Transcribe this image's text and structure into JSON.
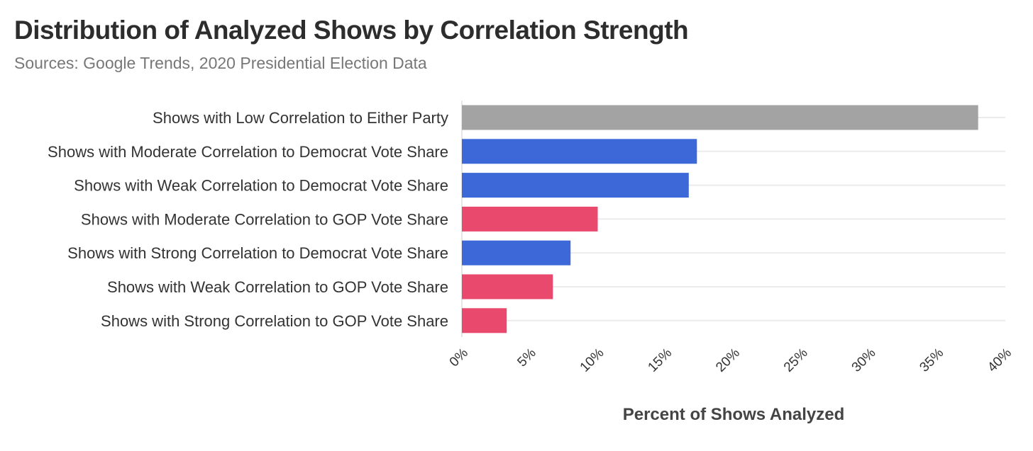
{
  "chart_data": {
    "type": "bar",
    "orientation": "horizontal",
    "title": "Distribution of Analyzed Shows by Correlation Strength",
    "subtitle": "Sources: Google Trends, 2020 Presidential Election Data",
    "xlabel": "Percent of Shows Analyzed",
    "ylabel": "",
    "xlim": [
      0,
      40
    ],
    "tick_values": [
      0,
      5,
      10,
      15,
      20,
      25,
      30,
      35,
      40
    ],
    "tick_labels": [
      "0%",
      "5%",
      "10%",
      "15%",
      "20%",
      "25%",
      "30%",
      "35%",
      "40%"
    ],
    "grid": true,
    "categories": [
      "Shows with Low Correlation to Either Party",
      "Shows with Moderate Correlation to Democrat Vote Share",
      "Shows with Weak Correlation to Democrat Vote Share",
      "Shows with Moderate Correlation to GOP Vote Share",
      "Shows with Strong Correlation to Democrat Vote Share",
      "Shows with Weak Correlation to GOP Vote Share",
      "Shows with Strong Correlation to GOP Vote Share"
    ],
    "values": [
      38.0,
      17.3,
      16.7,
      10.0,
      8.0,
      6.7,
      3.3
    ],
    "bar_colors": [
      "#a3a3a3",
      "#3d68d8",
      "#3d68d8",
      "#e9496d",
      "#3d68d8",
      "#e9496d",
      "#e9496d"
    ],
    "colors": {
      "neutral": "#a3a3a3",
      "democrat": "#3d68d8",
      "gop": "#e9496d",
      "grid": "#ebebeb",
      "axis": "#dddddd"
    }
  }
}
